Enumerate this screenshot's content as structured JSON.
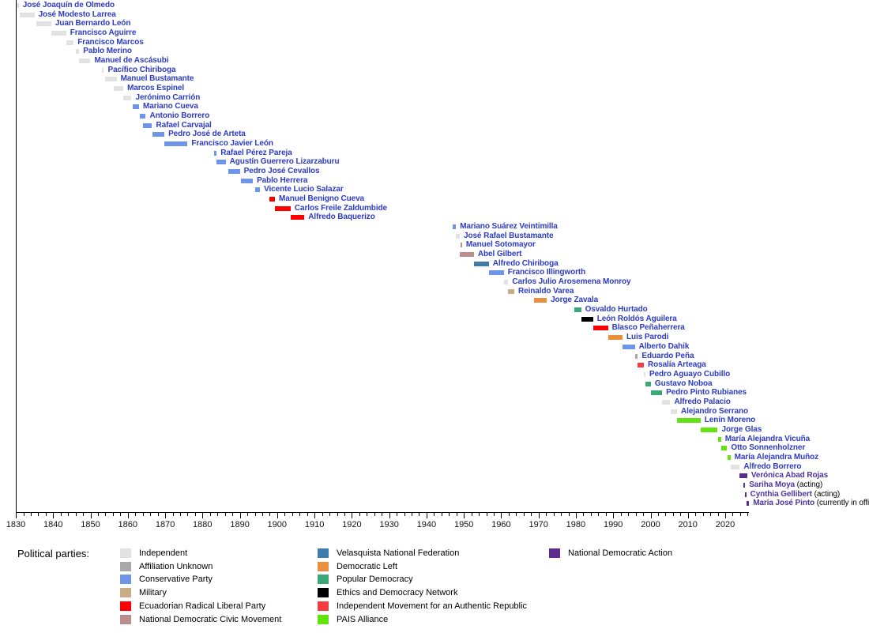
{
  "chart_data": {
    "type": "timeline",
    "legend_title": "Political parties:",
    "axis": {
      "start": 1830,
      "end": 2026.4,
      "major_tick_labels": [
        1830,
        1840,
        1850,
        1860,
        1870,
        1880,
        1890,
        1900,
        1910,
        1920,
        1930,
        1940,
        1950,
        1960,
        1970,
        1980,
        1990,
        2000,
        2010,
        2020
      ],
      "minor_tick_step": 2
    },
    "legend_columns": [
      6,
      6,
      1
    ],
    "parties": [
      {
        "id": "ind",
        "label": "Independent",
        "color": "#e2e2e2"
      },
      {
        "id": "unk",
        "label": "Affiliation Unknown",
        "color": "#a9a9a9"
      },
      {
        "id": "con",
        "label": "Conservative Party",
        "color": "#6e95e8"
      },
      {
        "id": "mil",
        "label": "Military",
        "color": "#c9ad86"
      },
      {
        "id": "plre",
        "label": "Ecuadorian Radical Liberal Party",
        "color": "#fe0000"
      },
      {
        "id": "mcdn",
        "label": "National Democratic Civic Movement",
        "color": "#bb8d8d"
      },
      {
        "id": "fnv",
        "label": "Velasquista National Federation",
        "color": "#3f7cab"
      },
      {
        "id": "idz",
        "label": "Democratic Left",
        "color": "#ec8f3d"
      },
      {
        "id": "dp",
        "label": "Popular Democracy",
        "color": "#3ca877"
      },
      {
        "id": "red",
        "label": "Ethics and Democracy Network",
        "color": "#000000"
      },
      {
        "id": "mira",
        "label": "Independent Movement for an Authentic Republic",
        "color": "#f23e3e"
      },
      {
        "id": "pais",
        "label": "PAIS Alliance",
        "color": "#62e30f"
      },
      {
        "id": "adn",
        "label": "National Democratic Action",
        "color": "#5b2b8f"
      }
    ],
    "people": [
      {
        "name": "José Joaquín de Olmedo",
        "party": "ind",
        "start": 1830.1,
        "end": 1830.8
      },
      {
        "name": "José Modesto Larrea",
        "party": "ind",
        "start": 1831,
        "end": 1835
      },
      {
        "name": "Juan Bernardo León",
        "party": "ind",
        "start": 1835.5,
        "end": 1839.5
      },
      {
        "name": "Francisco Aguirre",
        "party": "ind",
        "start": 1839.5,
        "end": 1843.5
      },
      {
        "name": "Francisco Marcos",
        "party": "ind",
        "start": 1843.5,
        "end": 1845.5
      },
      {
        "name": "Pablo Merino",
        "party": "ind",
        "start": 1846,
        "end": 1847
      },
      {
        "name": "Manuel de Ascásubi",
        "party": "ind",
        "start": 1847,
        "end": 1850
      },
      {
        "name": "Pacífico Chiriboga",
        "party": "ind",
        "start": 1853,
        "end": 1853.6
      },
      {
        "name": "Manuel Bustamante",
        "party": "ind",
        "start": 1854,
        "end": 1857
      },
      {
        "name": "Marcos Espinel",
        "party": "ind",
        "start": 1856.3,
        "end": 1858.8
      },
      {
        "name": "Jerónimo Carrión",
        "party": "ind",
        "start": 1858.8,
        "end": 1861
      },
      {
        "name": "Mariano Cueva",
        "party": "con",
        "start": 1861.3,
        "end": 1863
      },
      {
        "name": "Antonio Borrero",
        "party": "con",
        "start": 1863.2,
        "end": 1864.8
      },
      {
        "name": "Rafael Carvajal",
        "party": "con",
        "start": 1864,
        "end": 1866.5
      },
      {
        "name": "Pedro José de Arteta",
        "party": "con",
        "start": 1866.5,
        "end": 1869.8
      },
      {
        "name": "Francisco Javier León",
        "party": "con",
        "start": 1869.8,
        "end": 1876
      },
      {
        "name": "Rafael Pérez Pareja",
        "party": "con",
        "start": 1883.2,
        "end": 1883.8
      },
      {
        "name": "Agustín Guerrero Lizarzaburu",
        "party": "con",
        "start": 1883.8,
        "end": 1886.2
      },
      {
        "name": "Pedro José Cevallos",
        "party": "con",
        "start": 1886.8,
        "end": 1890
      },
      {
        "name": "Pablo Herrera",
        "party": "con",
        "start": 1890.3,
        "end": 1893.5
      },
      {
        "name": "Vicente Lucio Salazar",
        "party": "con",
        "start": 1894.2,
        "end": 1895.4
      },
      {
        "name": "Manuel Benigno Cueva",
        "party": "plre",
        "start": 1898,
        "end": 1899.4
      },
      {
        "name": "Carlos Freile Zaldumbide",
        "party": "plre",
        "start": 1899.4,
        "end": 1903.6
      },
      {
        "name": "Alfredo Baquerizo",
        "party": "plre",
        "start": 1903.6,
        "end": 1907.3
      },
      {
        "name": "Mariano Suárez Veintimilla",
        "party": "con",
        "start": 1946.9,
        "end": 1947.9
      },
      {
        "name": "José Rafael Bustamante",
        "party": "ind",
        "start": 1947.9,
        "end": 1948.9
      },
      {
        "name": "Manuel Sotomayor",
        "party": "mcdn",
        "start": 1949.1,
        "end": 1949.5
      },
      {
        "name": "Abel Gilbert",
        "party": "mcdn",
        "start": 1949,
        "end": 1952.7
      },
      {
        "name": "Alfredo Chiriboga",
        "party": "fnv",
        "start": 1952.7,
        "end": 1956.7
      },
      {
        "name": "Francisco Illingworth",
        "party": "con",
        "start": 1956.7,
        "end": 1960.7
      },
      {
        "name": "Carlos Julio Arosemena Monroy",
        "party": "ind",
        "start": 1960.7,
        "end": 1961.9
      },
      {
        "name": "Reinaldo Varea",
        "party": "mil",
        "start": 1961.9,
        "end": 1963.5
      },
      {
        "name": "Jorge Zavala",
        "party": "idz",
        "start": 1968.7,
        "end": 1972.2
      },
      {
        "name": "Osvaldo Hurtado",
        "party": "dp",
        "start": 1979.6,
        "end": 1981.4
      },
      {
        "name": "León Roldós Aguilera",
        "party": "red",
        "start": 1981.4,
        "end": 1984.6
      },
      {
        "name": "Blasco Peñaherrera",
        "party": "plre",
        "start": 1984.6,
        "end": 1988.6
      },
      {
        "name": "Luis Parodi",
        "party": "idz",
        "start": 1988.6,
        "end": 1992.5
      },
      {
        "name": "Alberto Dahik",
        "party": "con",
        "start": 1992.5,
        "end": 1995.8
      },
      {
        "name": "Eduardo Peña",
        "party": "unk",
        "start": 1995.8,
        "end": 1996.6
      },
      {
        "name": "Rosalía Arteaga",
        "party": "mira",
        "start": 1996.6,
        "end": 1998.2
      },
      {
        "name": "Pedro Aguayo Cubillo",
        "party": "ind",
        "start": 1998.2,
        "end": 1998.6
      },
      {
        "name": "Gustavo Noboa",
        "party": "dp",
        "start": 1998.6,
        "end": 2000.1
      },
      {
        "name": "Pedro Pinto Rubianes",
        "party": "dp",
        "start": 2000.1,
        "end": 2003.1
      },
      {
        "name": "Alfredo Palacio",
        "party": "ind",
        "start": 2003.1,
        "end": 2005.3
      },
      {
        "name": "Alejandro Serrano",
        "party": "ind",
        "start": 2005.3,
        "end": 2007.1
      },
      {
        "name": "Lenín Moreno",
        "party": "pais",
        "start": 2007.1,
        "end": 2013.4
      },
      {
        "name": "Jorge Glas",
        "party": "pais",
        "start": 2013.4,
        "end": 2018.0
      },
      {
        "name": "María Alejandra Vicuña",
        "party": "pais",
        "start": 2018.0,
        "end": 2018.9
      },
      {
        "name": "Otto Sonnenholzner",
        "party": "pais",
        "start": 2018.9,
        "end": 2020.5
      },
      {
        "name": "María Alejandra Muñoz",
        "party": "pais",
        "start": 2020.6,
        "end": 2021.4
      },
      {
        "name": "Alfredo Borrero",
        "party": "ind",
        "start": 2021.4,
        "end": 2023.9
      },
      {
        "name": "Verónica Abad Rojas",
        "party": "adn",
        "start": 2023.9,
        "end": 2025.9,
        "purple": true
      },
      {
        "name": "Sariha Moya",
        "suffix": " (acting)",
        "party": "adn",
        "start": 2024.9,
        "end": 2025.2,
        "purple": true
      },
      {
        "name": "Cynthia Gellibert",
        "suffix": " (acting)",
        "party": "adn",
        "start": 2025.2,
        "end": 2025.5,
        "purple": true
      },
      {
        "name": "María José Pinto",
        "suffix": " (currently in office)",
        "party": "adn",
        "start": 2025.8,
        "end": 2026.4,
        "purple": true
      }
    ]
  }
}
